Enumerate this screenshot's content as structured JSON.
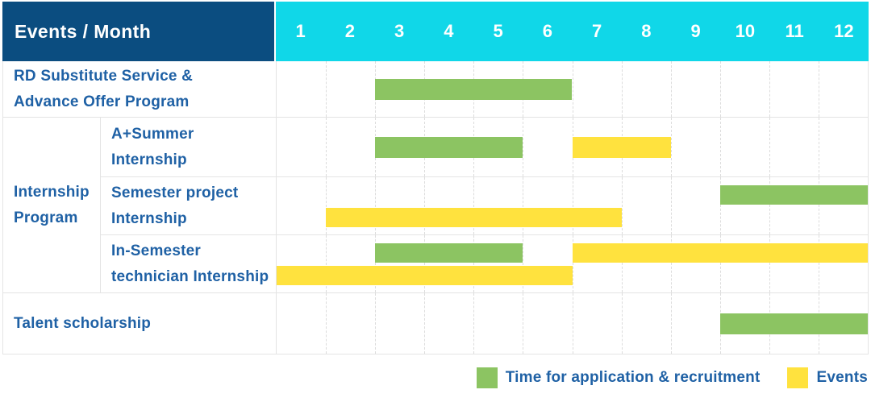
{
  "header": {
    "corner_label": "Events / Month",
    "months": [
      "1",
      "2",
      "3",
      "4",
      "5",
      "6",
      "7",
      "8",
      "9",
      "10",
      "11",
      "12"
    ]
  },
  "colors": {
    "header_bg": "#0b4d80",
    "months_bg": "#10d7e8",
    "application_green": "#8cc462",
    "events_yellow": "#ffe23e",
    "label_text_blue": "#1f61a5",
    "header_text": "#ffffff",
    "grid_line": "#e4e4e4"
  },
  "legend": {
    "items": [
      {
        "key": "application",
        "label": "Time for application & recruitment",
        "color": "#8cc462"
      },
      {
        "key": "events",
        "label": "Events",
        "color": "#ffe23e"
      }
    ]
  },
  "chart_data": {
    "type": "table",
    "subtype": "gantt-schedule",
    "title": "Events / Month",
    "x_unit": "month",
    "x_range": [
      1,
      12
    ],
    "x_ticks": [
      1,
      2,
      3,
      4,
      5,
      6,
      7,
      8,
      9,
      10,
      11,
      12
    ],
    "legend_position": "bottom-right",
    "series": [
      {
        "key": "application",
        "name": "Time for application & recruitment",
        "color": "#8cc462"
      },
      {
        "key": "events",
        "name": "Events",
        "color": "#ffe23e"
      }
    ],
    "group_label": "Internship Program",
    "group_label_lines": [
      "Internship",
      "Program"
    ],
    "group_rows": [
      2,
      3,
      4
    ],
    "rows": [
      {
        "label": "RD Substitute Service & Advance Offer Program",
        "label_lines": [
          "RD Substitute Service &",
          "Advance Offer Program"
        ],
        "group": null,
        "lanes": 1,
        "bars": [
          {
            "series": "application",
            "start_month": 3,
            "end_month": 6,
            "lane": 0
          }
        ]
      },
      {
        "label": "A+Summer Internship",
        "label_lines": [
          "A+Summer",
          "Internship"
        ],
        "group": "Internship Program",
        "lanes": 1,
        "bars": [
          {
            "series": "application",
            "start_month": 3,
            "end_month": 5,
            "lane": 0
          },
          {
            "series": "events",
            "start_month": 7,
            "end_month": 8,
            "lane": 0
          }
        ]
      },
      {
        "label": "Semester project Internship",
        "label_lines": [
          "Semester project",
          "Internship"
        ],
        "group": "Internship Program",
        "lanes": 2,
        "bars": [
          {
            "series": "application",
            "start_month": 10,
            "end_month": 12,
            "lane": 0
          },
          {
            "series": "events",
            "start_month": 2,
            "end_month": 7,
            "lane": 1
          }
        ]
      },
      {
        "label": "In-Semester technician Internship",
        "label_lines": [
          "In-Semester",
          "technician Internship"
        ],
        "group": "Internship Program",
        "lanes": 2,
        "bars": [
          {
            "series": "application",
            "start_month": 3,
            "end_month": 5,
            "lane": 0
          },
          {
            "series": "events",
            "start_month": 7,
            "end_month": 12,
            "lane": 0
          },
          {
            "series": "events",
            "start_month": 1,
            "end_month": 6,
            "lane": 1
          }
        ]
      },
      {
        "label": "Talent scholarship",
        "label_lines": [
          "Talent scholarship"
        ],
        "group": null,
        "lanes": 1,
        "bars": [
          {
            "series": "application",
            "start_month": 10,
            "end_month": 12,
            "lane": 0
          }
        ]
      }
    ]
  }
}
